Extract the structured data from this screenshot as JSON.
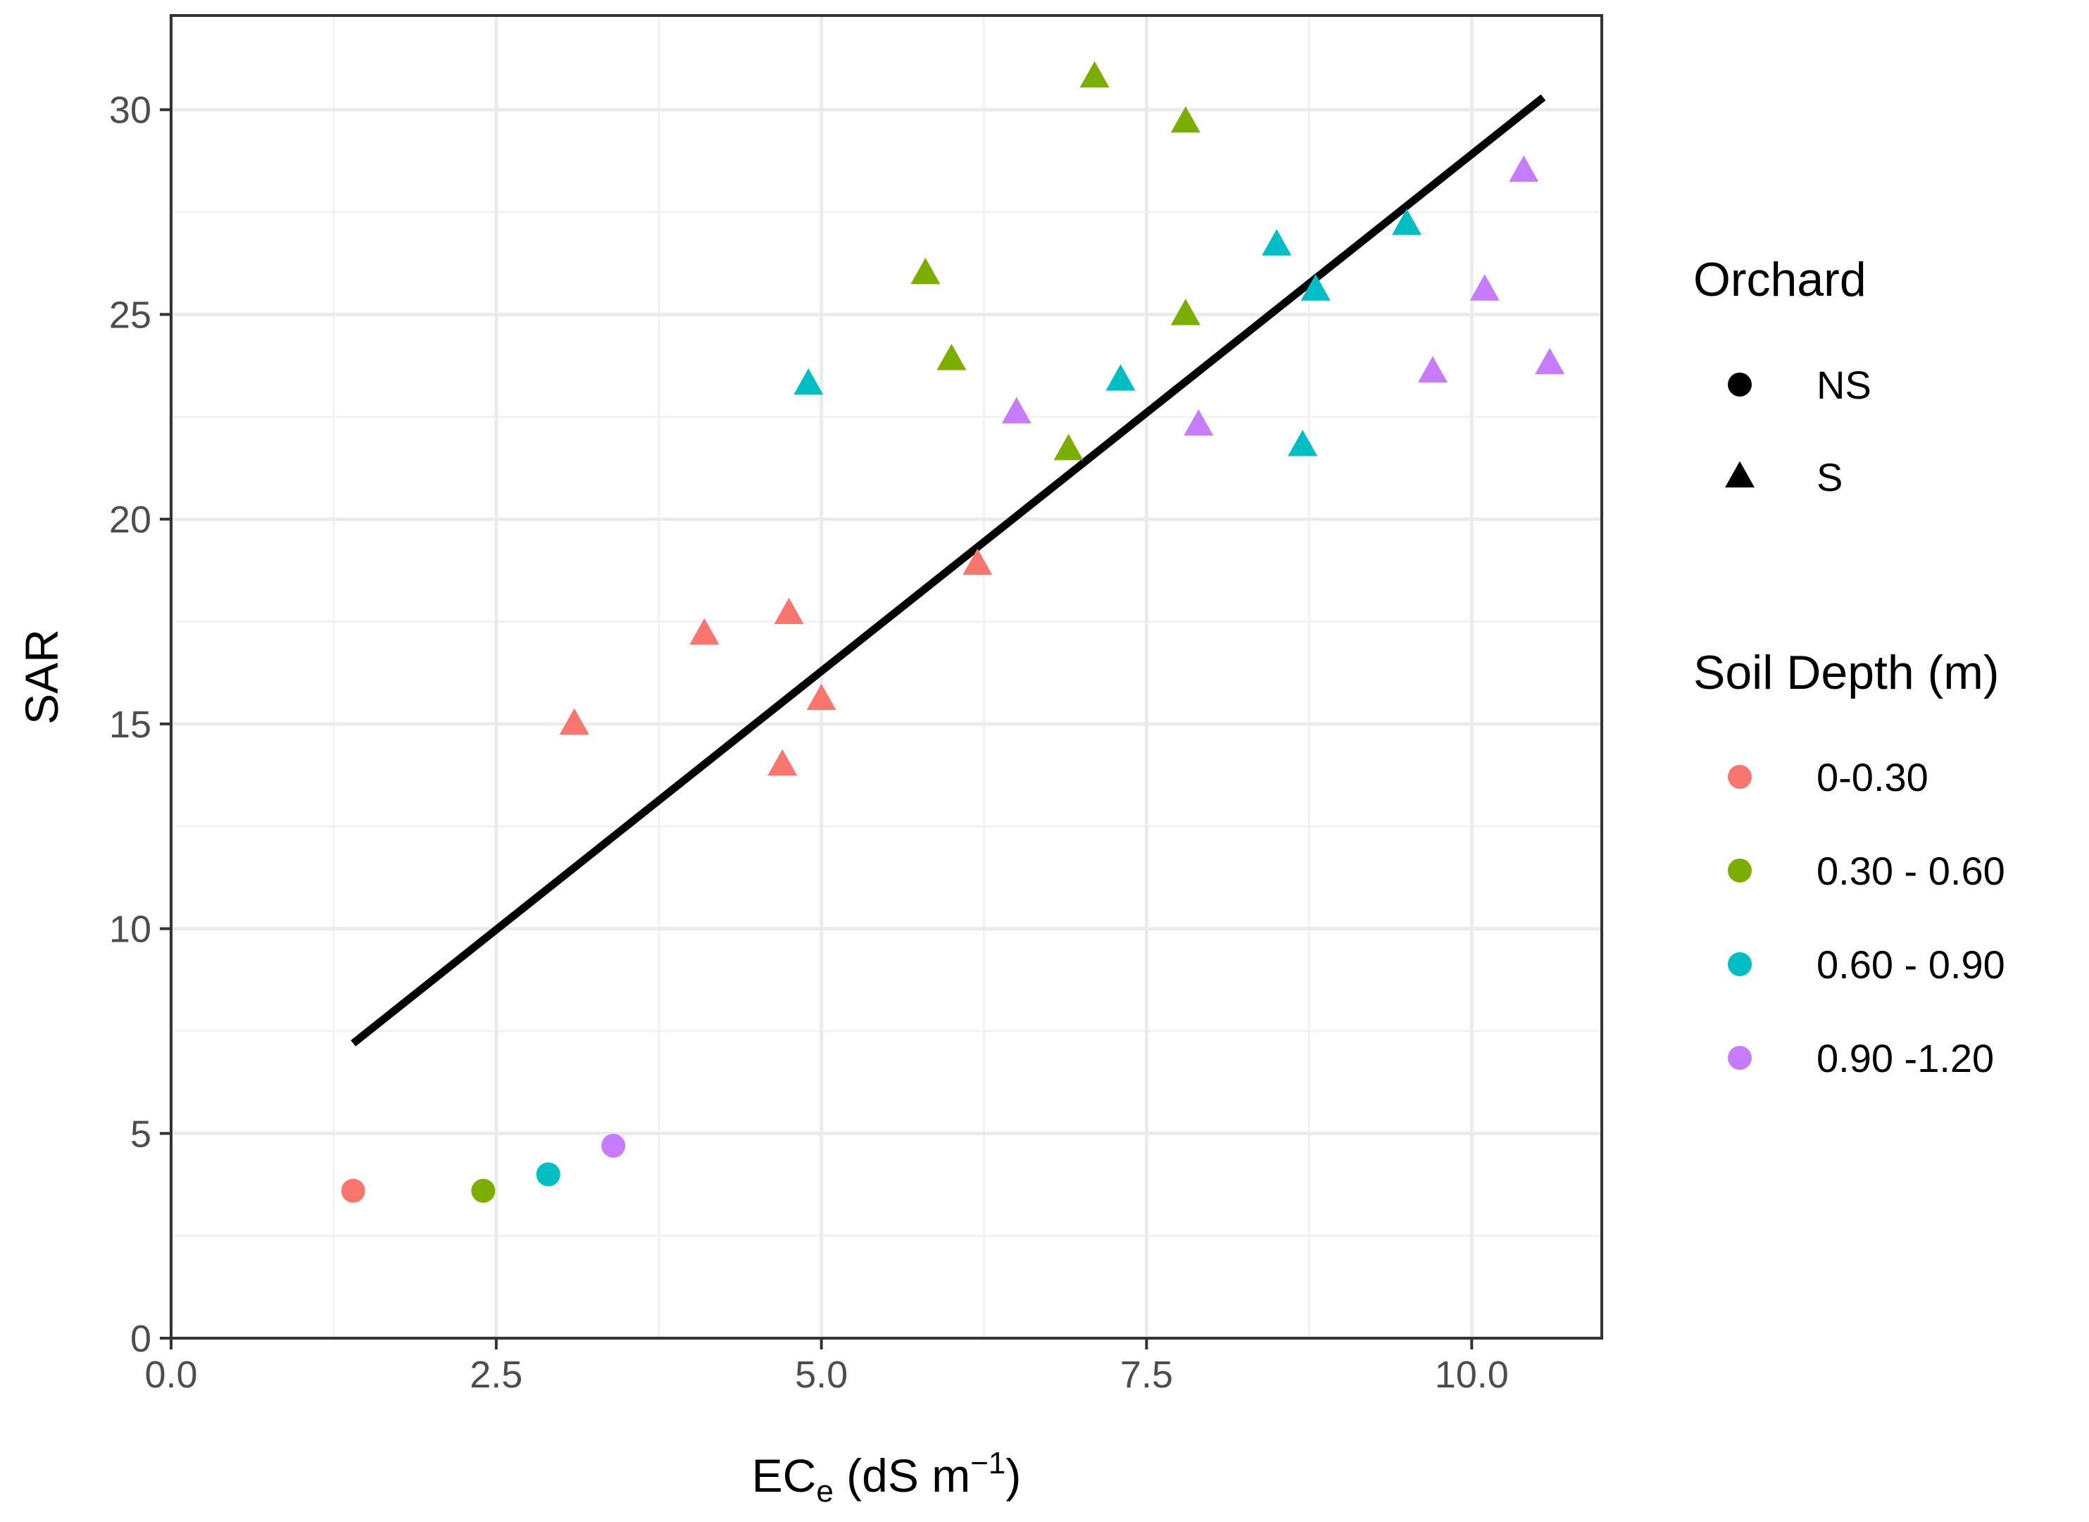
{
  "chart_data": {
    "type": "scatter",
    "title": "",
    "xlabel": {
      "main": "EC",
      "sub": "e",
      "unit_pre": " (dS m",
      "unit_sup": "−1",
      "unit_post": ")"
    },
    "ylabel": "SAR",
    "xlim": [
      0,
      11
    ],
    "ylim": [
      0,
      32.3
    ],
    "xticks": [
      0,
      2.5,
      5,
      7.5,
      10
    ],
    "xtick_labels": [
      "0.0",
      "2.5",
      "5.0",
      "7.5",
      "10.0"
    ],
    "yticks": [
      0,
      5,
      10,
      15,
      20,
      25,
      30
    ],
    "ytick_labels": [
      "0",
      "5",
      "10",
      "15",
      "20",
      "25",
      "30"
    ],
    "grid": true,
    "legend_position": "right",
    "legends": {
      "shape": {
        "title": "Orchard",
        "items": [
          {
            "key": "NS",
            "label": "NS",
            "shape": "circle"
          },
          {
            "key": "S",
            "label": "S",
            "shape": "triangle"
          }
        ]
      },
      "color": {
        "title": "Soil Depth (m)",
        "items": [
          {
            "key": "d1",
            "label": "0-0.30",
            "color": "#F8766D"
          },
          {
            "key": "d2",
            "label": "0.30 - 0.60",
            "color": "#7CAE00"
          },
          {
            "key": "d3",
            "label": "0.60 - 0.90",
            "color": "#00BFC4"
          },
          {
            "key": "d4",
            "label": "0.90 -1.20",
            "color": "#C77CFF"
          }
        ]
      }
    },
    "points": [
      {
        "x": 1.4,
        "y": 3.6,
        "orchard": "NS",
        "depth": "d1"
      },
      {
        "x": 2.4,
        "y": 3.6,
        "orchard": "NS",
        "depth": "d2"
      },
      {
        "x": 2.9,
        "y": 4.0,
        "orchard": "NS",
        "depth": "d3"
      },
      {
        "x": 3.4,
        "y": 4.7,
        "orchard": "NS",
        "depth": "d4"
      },
      {
        "x": 3.1,
        "y": 15.0,
        "orchard": "S",
        "depth": "d1"
      },
      {
        "x": 4.1,
        "y": 17.2,
        "orchard": "S",
        "depth": "d1"
      },
      {
        "x": 4.75,
        "y": 17.7,
        "orchard": "S",
        "depth": "d1"
      },
      {
        "x": 4.7,
        "y": 14.0,
        "orchard": "S",
        "depth": "d1"
      },
      {
        "x": 5.0,
        "y": 15.6,
        "orchard": "S",
        "depth": "d1"
      },
      {
        "x": 6.2,
        "y": 18.9,
        "orchard": "S",
        "depth": "d1"
      },
      {
        "x": 5.8,
        "y": 26.0,
        "orchard": "S",
        "depth": "d2"
      },
      {
        "x": 6.0,
        "y": 23.9,
        "orchard": "S",
        "depth": "d2"
      },
      {
        "x": 6.9,
        "y": 21.7,
        "orchard": "S",
        "depth": "d2"
      },
      {
        "x": 7.1,
        "y": 30.8,
        "orchard": "S",
        "depth": "d2"
      },
      {
        "x": 7.8,
        "y": 29.7,
        "orchard": "S",
        "depth": "d2"
      },
      {
        "x": 7.8,
        "y": 25.0,
        "orchard": "S",
        "depth": "d2"
      },
      {
        "x": 4.9,
        "y": 23.3,
        "orchard": "S",
        "depth": "d3"
      },
      {
        "x": 7.3,
        "y": 23.4,
        "orchard": "S",
        "depth": "d3"
      },
      {
        "x": 8.5,
        "y": 26.7,
        "orchard": "S",
        "depth": "d3"
      },
      {
        "x": 8.8,
        "y": 25.6,
        "orchard": "S",
        "depth": "d3"
      },
      {
        "x": 8.7,
        "y": 21.8,
        "orchard": "S",
        "depth": "d3"
      },
      {
        "x": 9.5,
        "y": 27.2,
        "orchard": "S",
        "depth": "d3"
      },
      {
        "x": 6.5,
        "y": 22.6,
        "orchard": "S",
        "depth": "d4"
      },
      {
        "x": 7.9,
        "y": 22.3,
        "orchard": "S",
        "depth": "d4"
      },
      {
        "x": 9.7,
        "y": 23.6,
        "orchard": "S",
        "depth": "d4"
      },
      {
        "x": 10.1,
        "y": 25.6,
        "orchard": "S",
        "depth": "d4"
      },
      {
        "x": 10.4,
        "y": 28.5,
        "orchard": "S",
        "depth": "d4"
      },
      {
        "x": 10.6,
        "y": 23.8,
        "orchard": "S",
        "depth": "d4"
      }
    ],
    "fit_line": {
      "x": [
        1.4,
        10.55
      ],
      "y": [
        7.2,
        30.3
      ],
      "color": "#000000"
    }
  }
}
